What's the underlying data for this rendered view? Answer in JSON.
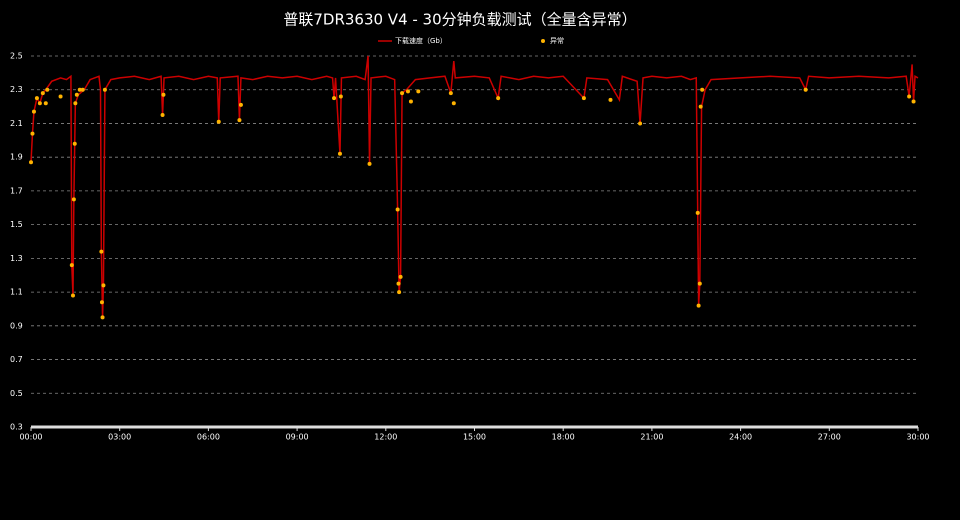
{
  "chart_data": {
    "type": "line",
    "title": "普联7DR3630 V4 - 30分钟负载测试（全量含异常）",
    "xlim": [
      0,
      30
    ],
    "xticks": [
      {
        "value": 0,
        "label": "00:00"
      },
      {
        "value": 3,
        "label": "03:00"
      },
      {
        "value": 6,
        "label": "06:00"
      },
      {
        "value": 9,
        "label": "09:00"
      },
      {
        "value": 12,
        "label": "12:00"
      },
      {
        "value": 15,
        "label": "15:00"
      },
      {
        "value": 18,
        "label": "18:00"
      },
      {
        "value": 21,
        "label": "21:00"
      },
      {
        "value": 24,
        "label": "24:00"
      },
      {
        "value": 27,
        "label": "27:00"
      },
      {
        "value": 30,
        "label": "30:00"
      }
    ],
    "ylim": [
      0.3,
      2.5
    ],
    "yticks": [
      0.3,
      0.5,
      0.7,
      0.9,
      1.1,
      1.3,
      1.5,
      1.7,
      1.9,
      2.1,
      2.3,
      2.5
    ],
    "grid": true,
    "series": [
      {
        "name": "下载速度（Gb）",
        "type": "line",
        "color": "#cc0000",
        "x": [
          0.0,
          0.05,
          0.1,
          0.2,
          0.3,
          0.4,
          0.5,
          0.7,
          1.0,
          1.2,
          1.35,
          1.38,
          1.42,
          1.45,
          1.5,
          1.6,
          1.8,
          2.0,
          2.3,
          2.35,
          2.38,
          2.42,
          2.45,
          2.5,
          2.7,
          3.0,
          3.5,
          4.0,
          4.4,
          4.45,
          4.5,
          5.0,
          5.5,
          6.0,
          6.3,
          6.35,
          6.4,
          7.0,
          7.05,
          7.1,
          7.5,
          8.0,
          8.5,
          9.0,
          9.5,
          10.0,
          10.2,
          10.25,
          10.3,
          10.45,
          10.5,
          11.0,
          11.3,
          11.4,
          11.45,
          11.5,
          12.0,
          12.3,
          12.4,
          12.45,
          12.5,
          12.55,
          12.7,
          13.0,
          13.5,
          14.0,
          14.2,
          14.3,
          14.35,
          15.0,
          15.5,
          15.8,
          15.9,
          16.5,
          17.0,
          17.5,
          18.0,
          18.7,
          18.8,
          19.5,
          19.9,
          20.0,
          20.5,
          20.6,
          20.7,
          21.0,
          21.5,
          22.0,
          22.3,
          22.5,
          22.55,
          22.58,
          22.62,
          22.68,
          22.8,
          23.0,
          24.0,
          25.0,
          26.0,
          26.2,
          26.3,
          27.0,
          28.0,
          29.0,
          29.6,
          29.7,
          29.8,
          29.85,
          29.9,
          30.0
        ],
        "values": [
          1.87,
          2.04,
          2.17,
          2.25,
          2.22,
          2.28,
          2.3,
          2.35,
          2.37,
          2.36,
          2.38,
          1.26,
          1.08,
          1.65,
          2.22,
          2.27,
          2.3,
          2.36,
          2.38,
          2.3,
          1.34,
          0.95,
          1.14,
          2.3,
          2.36,
          2.37,
          2.38,
          2.36,
          2.38,
          2.15,
          2.37,
          2.38,
          2.36,
          2.38,
          2.37,
          2.11,
          2.37,
          2.38,
          2.12,
          2.37,
          2.36,
          2.38,
          2.37,
          2.38,
          2.36,
          2.38,
          2.37,
          2.25,
          2.37,
          1.92,
          2.37,
          2.38,
          2.36,
          2.5,
          1.86,
          2.37,
          2.38,
          2.36,
          1.59,
          1.1,
          1.19,
          2.28,
          2.3,
          2.36,
          2.37,
          2.38,
          2.28,
          2.47,
          2.37,
          2.38,
          2.37,
          2.25,
          2.38,
          2.36,
          2.38,
          2.37,
          2.38,
          2.25,
          2.37,
          2.36,
          2.24,
          2.38,
          2.35,
          2.1,
          2.37,
          2.38,
          2.37,
          2.38,
          2.36,
          2.37,
          1.57,
          1.02,
          1.15,
          2.2,
          2.3,
          2.36,
          2.37,
          2.38,
          2.37,
          2.3,
          2.38,
          2.37,
          2.38,
          2.37,
          2.38,
          2.26,
          2.45,
          2.23,
          2.38,
          2.37
        ]
      },
      {
        "name": "异常",
        "type": "scatter",
        "color": "#ffb300",
        "x": [
          0,
          0.05,
          0.1,
          0.2,
          0.3,
          0.4,
          0.5,
          0.55,
          1.0,
          1.38,
          1.42,
          1.45,
          1.48,
          1.5,
          1.55,
          1.65,
          1.75,
          2.38,
          2.4,
          2.42,
          2.45,
          2.5,
          4.45,
          4.48,
          6.35,
          7.05,
          7.1,
          10.25,
          10.45,
          10.48,
          11.45,
          12.4,
          12.43,
          12.45,
          12.5,
          12.55,
          12.75,
          12.85,
          13.1,
          14.2,
          14.3,
          15.8,
          18.7,
          19.6,
          20.6,
          22.55,
          22.58,
          22.62,
          22.65,
          22.7,
          26.2,
          29.7,
          29.85
        ],
        "values": [
          1.87,
          2.04,
          2.17,
          2.25,
          2.22,
          2.28,
          2.22,
          2.3,
          2.26,
          1.26,
          1.08,
          1.65,
          1.98,
          2.22,
          2.27,
          2.3,
          2.3,
          1.34,
          1.04,
          0.95,
          1.14,
          2.3,
          2.15,
          2.27,
          2.11,
          2.12,
          2.21,
          2.25,
          1.92,
          2.26,
          1.86,
          1.59,
          1.15,
          1.1,
          1.19,
          2.28,
          2.29,
          2.23,
          2.29,
          2.28,
          2.22,
          2.25,
          2.25,
          2.24,
          2.1,
          1.57,
          1.02,
          1.15,
          2.2,
          2.3,
          2.3,
          2.26,
          2.23
        ]
      }
    ]
  }
}
